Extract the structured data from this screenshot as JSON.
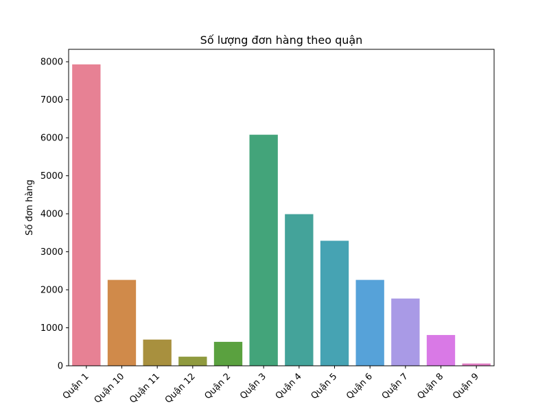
{
  "chart_data": {
    "type": "bar",
    "title": "Số lượng đơn hàng theo quận",
    "xlabel": "",
    "ylabel": "Số đơn hàng",
    "categories": [
      "Quận 1",
      "Quận 10",
      "Quận 11",
      "Quận 12",
      "Quận 2",
      "Quận 3",
      "Quận 4",
      "Quận 5",
      "Quận 6",
      "Quận 7",
      "Quận 8",
      "Quận 9"
    ],
    "values": [
      7930,
      2260,
      690,
      240,
      630,
      6080,
      3990,
      3290,
      2260,
      1770,
      810,
      60
    ],
    "colors": [
      "#e78194",
      "#d08a4a",
      "#a8903e",
      "#8f9a3e",
      "#5aa13f",
      "#43a47a",
      "#44a39a",
      "#46a3b3",
      "#56a2d9",
      "#a99ae6",
      "#d979e6",
      "#e07cc2"
    ],
    "yticks": [
      0,
      1000,
      2000,
      3000,
      4000,
      5000,
      6000,
      7000,
      8000
    ],
    "ylim": [
      0,
      8327
    ],
    "grid": false
  }
}
